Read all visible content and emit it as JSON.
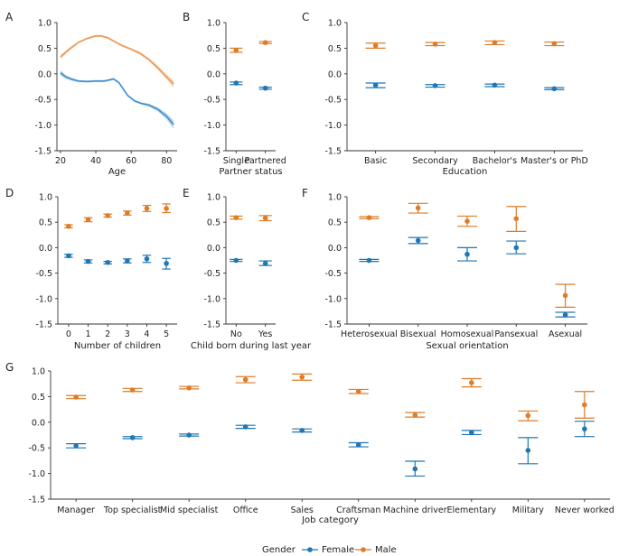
{
  "colors": {
    "female": "#1f77b4",
    "male": "#e07b26",
    "female_line": "#3d8fcc",
    "male_line": "#ee9a5a",
    "axis": "#333333"
  },
  "legend": {
    "title": "Gender",
    "female": "Female",
    "male": "Male"
  },
  "chart_data": [
    {
      "panel": "A",
      "type": "line",
      "xlabel": "Age",
      "ylabel": "",
      "ylim": [
        -1.5,
        1.0
      ],
      "xlim": [
        18,
        86
      ],
      "xticks": [
        20,
        40,
        60,
        80
      ],
      "yticks": [
        -1.5,
        -1.0,
        -0.5,
        0.0,
        0.5,
        1.0
      ],
      "ytick_labels": [
        "-1.5",
        "-1.0",
        "-0.5",
        "0.0",
        "0.5",
        "1.0"
      ],
      "series": [
        {
          "name": "Male",
          "x": [
            20,
            25,
            30,
            35,
            40,
            43,
            47,
            50,
            55,
            60,
            65,
            70,
            75,
            80,
            84
          ],
          "y": [
            0.33,
            0.48,
            0.61,
            0.69,
            0.74,
            0.74,
            0.7,
            0.64,
            0.55,
            0.48,
            0.4,
            0.28,
            0.12,
            -0.06,
            -0.2
          ],
          "band": [
            0.04,
            0.03,
            0.02,
            0.02,
            0.02,
            0.02,
            0.02,
            0.02,
            0.02,
            0.02,
            0.03,
            0.03,
            0.04,
            0.05,
            0.07
          ]
        },
        {
          "name": "Female",
          "x": [
            20,
            23,
            26,
            30,
            35,
            40,
            45,
            50,
            53,
            55,
            58,
            62,
            66,
            70,
            75,
            80,
            84
          ],
          "y": [
            0.02,
            -0.06,
            -0.1,
            -0.14,
            -0.15,
            -0.14,
            -0.14,
            -0.1,
            -0.17,
            -0.27,
            -0.42,
            -0.53,
            -0.58,
            -0.61,
            -0.69,
            -0.83,
            -0.99
          ],
          "band": [
            0.05,
            0.04,
            0.03,
            0.02,
            0.02,
            0.02,
            0.02,
            0.02,
            0.02,
            0.02,
            0.02,
            0.02,
            0.02,
            0.03,
            0.04,
            0.06,
            0.08
          ]
        }
      ]
    },
    {
      "panel": "B",
      "type": "errorbar",
      "xlabel": "Partner status",
      "ylim": [
        -1.5,
        1.0
      ],
      "categories": [
        "Single",
        "Partnered"
      ],
      "yticks": [
        -1.5,
        -1.0,
        -0.5,
        0.0,
        0.5,
        1.0
      ],
      "ytick_labels": [
        "-1.5",
        "-1.0",
        "-0.5",
        "0.0",
        "0.5",
        "1.0"
      ],
      "series": [
        {
          "name": "Male",
          "values": [
            0.46,
            0.61
          ],
          "lo": [
            0.42,
            0.59
          ],
          "hi": [
            0.5,
            0.63
          ]
        },
        {
          "name": "Female",
          "values": [
            -0.18,
            -0.28
          ],
          "lo": [
            -0.21,
            -0.3
          ],
          "hi": [
            -0.16,
            -0.26
          ]
        }
      ]
    },
    {
      "panel": "C",
      "type": "errorbar",
      "xlabel": "Education",
      "ylim": [
        -1.5,
        1.0
      ],
      "categories": [
        "Basic",
        "Secondary",
        "Bachelor's",
        "Master's or PhD"
      ],
      "yticks": [
        -1.5,
        -1.0,
        -0.5,
        0.0,
        0.5,
        1.0
      ],
      "ytick_labels": [
        "-1.5",
        "-1.0",
        "-0.5",
        "0.0",
        "0.5",
        "1.0"
      ],
      "series": [
        {
          "name": "Male",
          "values": [
            0.55,
            0.58,
            0.61,
            0.59
          ],
          "lo": [
            0.5,
            0.55,
            0.57,
            0.55
          ],
          "hi": [
            0.6,
            0.61,
            0.64,
            0.62
          ]
        },
        {
          "name": "Female",
          "values": [
            -0.22,
            -0.23,
            -0.22,
            -0.29
          ],
          "lo": [
            -0.27,
            -0.26,
            -0.25,
            -0.31
          ],
          "hi": [
            -0.18,
            -0.21,
            -0.2,
            -0.27
          ]
        }
      ]
    },
    {
      "panel": "D",
      "type": "errorbar",
      "xlabel": "Number of children",
      "ylim": [
        -1.5,
        1.0
      ],
      "categories": [
        "0",
        "1",
        "2",
        "3",
        "4",
        "5"
      ],
      "yticks": [
        -1.5,
        -1.0,
        -0.5,
        0.0,
        0.5,
        1.0
      ],
      "ytick_labels": [
        "-1.5",
        "-1.0",
        "-0.5",
        "0.0",
        "0.5",
        "1.0"
      ],
      "series": [
        {
          "name": "Male",
          "values": [
            0.42,
            0.55,
            0.63,
            0.68,
            0.77,
            0.77
          ],
          "lo": [
            0.39,
            0.51,
            0.6,
            0.64,
            0.71,
            0.69
          ],
          "hi": [
            0.45,
            0.59,
            0.66,
            0.72,
            0.83,
            0.86
          ]
        },
        {
          "name": "Female",
          "values": [
            -0.16,
            -0.27,
            -0.29,
            -0.26,
            -0.22,
            -0.31
          ],
          "lo": [
            -0.19,
            -0.3,
            -0.32,
            -0.3,
            -0.29,
            -0.42
          ],
          "hi": [
            -0.13,
            -0.24,
            -0.27,
            -0.22,
            -0.15,
            -0.21
          ]
        }
      ]
    },
    {
      "panel": "E",
      "type": "errorbar",
      "xlabel": "Child born during last year",
      "ylim": [
        -1.5,
        1.0
      ],
      "categories": [
        "No",
        "Yes"
      ],
      "yticks": [
        -1.5,
        -1.0,
        -0.5,
        0.0,
        0.5,
        1.0
      ],
      "ytick_labels": [
        "-1.5",
        "-1.0",
        "-0.5",
        "0.0",
        "0.5",
        "1.0"
      ],
      "series": [
        {
          "name": "Male",
          "values": [
            0.59,
            0.58
          ],
          "lo": [
            0.56,
            0.53
          ],
          "hi": [
            0.62,
            0.63
          ]
        },
        {
          "name": "Female",
          "values": [
            -0.25,
            -0.31
          ],
          "lo": [
            -0.27,
            -0.35
          ],
          "hi": [
            -0.23,
            -0.26
          ]
        }
      ]
    },
    {
      "panel": "F",
      "type": "errorbar",
      "xlabel": "Sexual orientation",
      "ylim": [
        -1.5,
        1.0
      ],
      "categories": [
        "Heterosexual",
        "Bisexual",
        "Homosexual",
        "Pansexual",
        "Asexual"
      ],
      "yticks": [
        -1.5,
        -1.0,
        -0.5,
        0.0,
        0.5,
        1.0
      ],
      "ytick_labels": [
        "-1.5",
        "-1.0",
        "-0.5",
        "0.0",
        "0.5",
        "1.0"
      ],
      "series": [
        {
          "name": "Male",
          "values": [
            0.59,
            0.78,
            0.52,
            0.57,
            -0.94
          ],
          "lo": [
            0.57,
            0.68,
            0.42,
            0.32,
            -1.17
          ],
          "hi": [
            0.61,
            0.87,
            0.62,
            0.81,
            -0.72
          ]
        },
        {
          "name": "Female",
          "values": [
            -0.25,
            0.14,
            -0.13,
            0.0,
            -1.32
          ],
          "lo": [
            -0.27,
            0.08,
            -0.26,
            -0.12,
            -1.36
          ],
          "hi": [
            -0.23,
            0.2,
            0.0,
            0.13,
            -1.27
          ]
        }
      ]
    },
    {
      "panel": "G",
      "type": "errorbar",
      "xlabel": "Job category",
      "ylim": [
        -1.5,
        1.0
      ],
      "categories": [
        "Manager",
        "Top specialist",
        "Mid specialist",
        "Office",
        "Sales",
        "Craftsman",
        "Machine driver",
        "Elementary",
        "Military",
        "Never worked"
      ],
      "yticks": [
        -1.5,
        -1.0,
        -0.5,
        0.0,
        0.5,
        1.0
      ],
      "ytick_labels": [
        "-1.5",
        "-1.0",
        "-0.5",
        "0.0",
        "0.5",
        "1.0"
      ],
      "series": [
        {
          "name": "Male",
          "values": [
            0.49,
            0.63,
            0.67,
            0.83,
            0.88,
            0.6,
            0.14,
            0.77,
            0.13,
            0.34
          ],
          "lo": [
            0.46,
            0.6,
            0.65,
            0.77,
            0.82,
            0.56,
            0.1,
            0.69,
            0.03,
            0.08
          ],
          "hi": [
            0.52,
            0.66,
            0.7,
            0.89,
            0.94,
            0.64,
            0.19,
            0.85,
            0.22,
            0.6
          ]
        },
        {
          "name": "Female",
          "values": [
            -0.46,
            -0.3,
            -0.25,
            -0.09,
            -0.16,
            -0.44,
            -0.91,
            -0.2,
            -0.55,
            -0.13
          ],
          "lo": [
            -0.5,
            -0.32,
            -0.27,
            -0.12,
            -0.19,
            -0.48,
            -1.05,
            -0.24,
            -0.81,
            -0.28
          ],
          "hi": [
            -0.42,
            -0.28,
            -0.23,
            -0.06,
            -0.13,
            -0.4,
            -0.76,
            -0.16,
            -0.3,
            0.02
          ]
        }
      ]
    }
  ]
}
